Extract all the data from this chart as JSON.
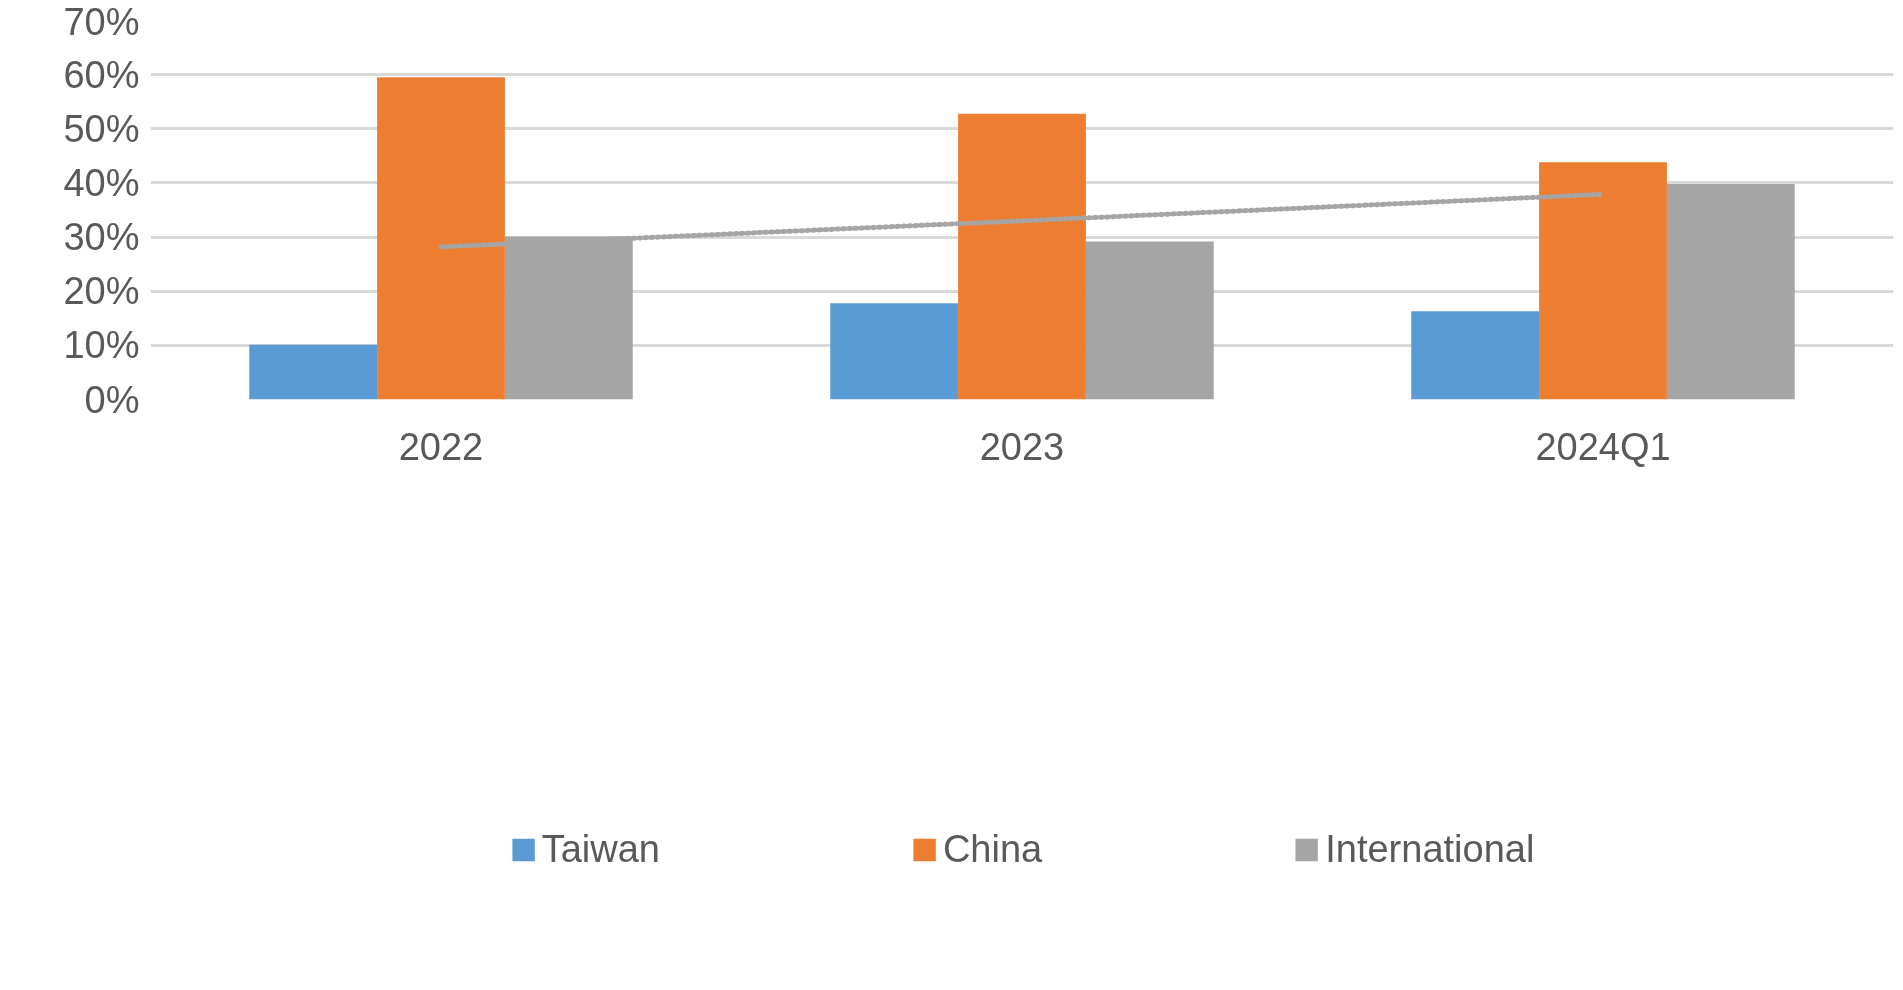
{
  "chart_data": {
    "type": "bar",
    "categories": [
      "2022",
      "2023",
      "2024Q1"
    ],
    "series": [
      {
        "name": "Taiwan",
        "color": "#5b9bd5",
        "values": [
          10.1,
          17.8,
          16.3
        ]
      },
      {
        "name": "China",
        "color": "#ed7d31",
        "values": [
          59.5,
          52.8,
          43.8
        ]
      },
      {
        "name": "International",
        "color": "#a5a5a5",
        "values": [
          30.1,
          29.2,
          39.8
        ]
      },
      {
        "type": "line",
        "color": "#a5a5a5",
        "line_style": "dotted",
        "values": [
          28.2,
          33.0,
          37.9
        ]
      }
    ],
    "ylim": [
      0,
      70
    ],
    "yticks": [
      {
        "value": 0,
        "label": "0%"
      },
      {
        "value": 10,
        "label": "10%"
      },
      {
        "value": 20,
        "label": "20%"
      },
      {
        "value": 30,
        "label": "30%"
      },
      {
        "value": 40,
        "label": "40%"
      },
      {
        "value": 50,
        "label": "50%"
      },
      {
        "value": 60,
        "label": "60%"
      },
      {
        "value": 70,
        "label": "70%"
      }
    ],
    "grid": "y",
    "legend": "bottom"
  }
}
